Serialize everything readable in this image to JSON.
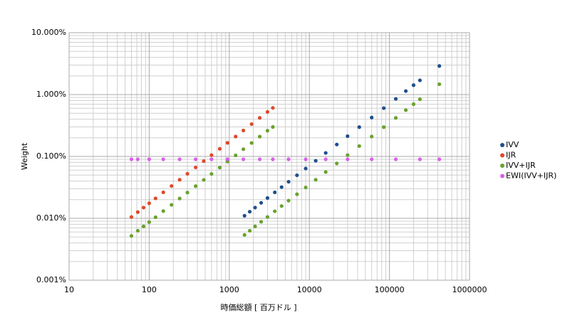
{
  "chart_data": {
    "type": "scatter",
    "xlabel": "時価総額 [ 百万ドル ]",
    "ylabel": "Weight",
    "xlog": true,
    "ylog": true,
    "grid": true,
    "minor_grid": true,
    "legend": "right",
    "xlim": [
      10,
      1000000
    ],
    "xticks": [
      10,
      100,
      1000,
      10000,
      100000,
      1000000
    ],
    "ylim": [
      0.001,
      10
    ],
    "yticks": [
      {
        "value": 0.001,
        "label": "0.001%"
      },
      {
        "value": 0.01,
        "label": "0.010%"
      },
      {
        "value": 0.1,
        "label": "0.100%"
      },
      {
        "value": 1,
        "label": "1.000%"
      },
      {
        "value": 10,
        "label": "10.000%"
      }
    ],
    "series": [
      {
        "name": "IVV",
        "color": "#1f4e8c",
        "x": [
          1550,
          1800,
          2100,
          2500,
          3000,
          3700,
          4500,
          5500,
          7000,
          9000,
          12000,
          16000,
          22000,
          30000,
          42000,
          60000,
          85000,
          120000,
          160000,
          200000,
          240000,
          420000
        ],
        "values": [
          0.011,
          0.0128,
          0.0149,
          0.0178,
          0.0213,
          0.0263,
          0.032,
          0.039,
          0.0497,
          0.0639,
          0.0852,
          0.114,
          0.156,
          0.213,
          0.298,
          0.426,
          0.604,
          0.852,
          1.14,
          1.42,
          1.7,
          2.9
        ]
      },
      {
        "name": "IJR",
        "color": "#e0482a",
        "x": [
          60,
          72,
          85,
          100,
          120,
          150,
          190,
          240,
          300,
          380,
          480,
          600,
          760,
          950,
          1200,
          1500,
          1900,
          2400,
          3000,
          3500
        ],
        "values": [
          0.0105,
          0.0126,
          0.0149,
          0.0175,
          0.021,
          0.0263,
          0.0333,
          0.042,
          0.0525,
          0.0665,
          0.084,
          0.105,
          0.133,
          0.166,
          0.21,
          0.263,
          0.333,
          0.42,
          0.525,
          0.61
        ]
      },
      {
        "name": "IVV+IJR",
        "color": "#6aa22e",
        "x": [
          60,
          72,
          85,
          100,
          120,
          150,
          190,
          240,
          300,
          380,
          480,
          600,
          760,
          950,
          1200,
          1500,
          1900,
          2400,
          3000,
          3500,
          1550,
          1800,
          2100,
          2500,
          3000,
          3700,
          4500,
          5500,
          7000,
          9000,
          12000,
          16000,
          22000,
          30000,
          42000,
          60000,
          85000,
          120000,
          160000,
          200000,
          240000,
          420000
        ],
        "values": [
          0.0052,
          0.0063,
          0.0074,
          0.0087,
          0.0104,
          0.0131,
          0.0165,
          0.0209,
          0.0261,
          0.0331,
          0.0418,
          0.0522,
          0.0661,
          0.0827,
          0.104,
          0.131,
          0.165,
          0.209,
          0.261,
          0.3,
          0.0054,
          0.0063,
          0.0074,
          0.0088,
          0.0105,
          0.013,
          0.0158,
          0.0193,
          0.0245,
          0.0315,
          0.042,
          0.056,
          0.077,
          0.105,
          0.147,
          0.21,
          0.298,
          0.42,
          0.56,
          0.7,
          0.84,
          1.47
        ]
      },
      {
        "name": "EWI(IVV+IJR)",
        "color": "#d95fe8",
        "x": [
          60,
          72,
          100,
          150,
          240,
          380,
          600,
          950,
          1500,
          2400,
          3500,
          5500,
          9000,
          16000,
          30000,
          60000,
          120000,
          240000,
          420000
        ],
        "values": [
          0.09,
          0.09,
          0.09,
          0.09,
          0.09,
          0.09,
          0.09,
          0.09,
          0.09,
          0.09,
          0.09,
          0.09,
          0.09,
          0.09,
          0.09,
          0.09,
          0.09,
          0.09,
          0.09
        ]
      }
    ]
  }
}
